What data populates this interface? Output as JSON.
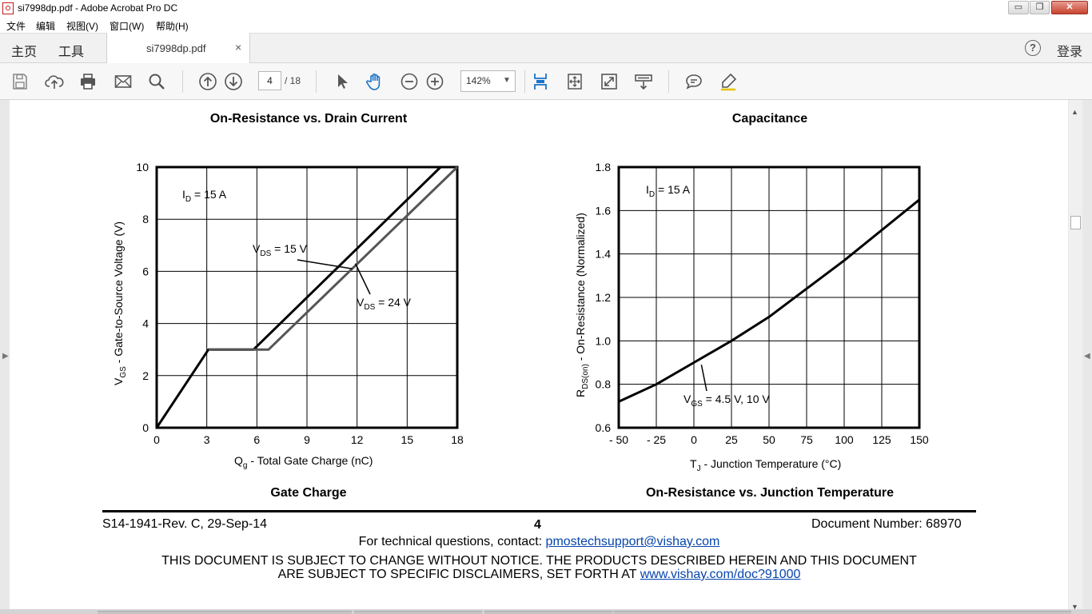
{
  "window": {
    "title": "si7998dp.pdf - Adobe Acrobat Pro DC",
    "minimize": "▭",
    "maximize": "❐",
    "close": "✕"
  },
  "menu": [
    "文件",
    "编辑",
    "视图(V)",
    "窗口(W)",
    "帮助(H)"
  ],
  "nav_tabs": {
    "home": "主页",
    "tools": "工具"
  },
  "doc_tab": {
    "label": "si7998dp.pdf",
    "close": "×"
  },
  "account": {
    "help": "?",
    "login": "登录"
  },
  "toolbar": {
    "icons": [
      "save-icon",
      "upload-icon",
      "print-icon",
      "email-icon",
      "search-icon",
      "page-up-icon",
      "page-down-icon",
      "select-cursor-icon",
      "hand-icon",
      "zoom-out-icon",
      "zoom-in-icon",
      "fit-page-icon",
      "full-screen-icon",
      "fit-width-icon",
      "scroll-mode-icon",
      "comment-icon",
      "highlight-icon"
    ],
    "page_current": "4",
    "page_total": "/ 18",
    "zoom": "142%"
  },
  "charts": {
    "left": {
      "title_above": "On-Resistance vs. Drain Current",
      "caption_below": "Gate Charge",
      "annot_id": "I",
      "annot_id_sub": "D",
      "annot_id_val": " = 15 A",
      "ylabel_main": "V",
      "ylabel_sub": "GS",
      "ylabel_rest": " - Gate-to-Source Voltage (V)",
      "xlabel_main": "Q",
      "xlabel_sub": "g",
      "xlabel_rest": " - Total Gate Charge (nC)",
      "label15_main": "V",
      "label15_sub": "DS",
      "label15_rest": " = 15 V",
      "label24_main": "V",
      "label24_sub": "DS",
      "label24_rest": " = 24 V"
    },
    "right": {
      "title_above": "Capacitance",
      "caption_below": "On-Resistance vs. Junction Temperature",
      "annot_id": "I",
      "annot_id_sub": "D",
      "annot_id_val": " = 15 A",
      "ylabel_main": "R",
      "ylabel_sub": "DS(on)",
      "ylabel_rest": " - On-Resistance (Normalized)",
      "xlabel_main": "T",
      "xlabel_sub": "J",
      "xlabel_rest": " - Junction Temperature (°C)",
      "curve_main": "V",
      "curve_sub": "GS",
      "curve_rest": " = 4.5 V, 10 V"
    }
  },
  "chart_data": [
    {
      "type": "line",
      "title": "Gate Charge",
      "xlabel": "Qg - Total Gate Charge (nC)",
      "ylabel": "VGS - Gate-to-Source Voltage (V)",
      "xlim": [
        0,
        18
      ],
      "ylim": [
        0,
        10
      ],
      "xticks": [
        0,
        3,
        6,
        9,
        12,
        15,
        18
      ],
      "yticks": [
        0,
        2,
        4,
        6,
        8,
        10
      ],
      "grid": true,
      "series": [
        {
          "name": "VDS = 15 V",
          "color": "#000000",
          "x": [
            0,
            3.1,
            5.8,
            17.0
          ],
          "y": [
            0,
            3.0,
            3.0,
            10.0
          ]
        },
        {
          "name": "VDS = 24 V",
          "color": "#555555",
          "x": [
            3.1,
            6.7,
            18.0
          ],
          "y": [
            3.0,
            3.0,
            10.0
          ]
        }
      ]
    },
    {
      "type": "line",
      "title": "On-Resistance vs. Junction Temperature",
      "xlabel": "TJ - Junction Temperature (°C)",
      "ylabel": "RDS(on) - On-Resistance (Normalized)",
      "xlim": [
        -50,
        150
      ],
      "ylim": [
        0.6,
        1.8
      ],
      "xticks": [
        -50,
        -25,
        0,
        25,
        50,
        75,
        100,
        125,
        150
      ],
      "xtick_labels": [
        "- 50",
        "- 25",
        "0",
        "25",
        "50",
        "75",
        "100",
        "125",
        "150"
      ],
      "yticks": [
        0.6,
        0.8,
        1.0,
        1.2,
        1.4,
        1.6,
        1.8
      ],
      "ytick_labels": [
        "0.6",
        "0.8",
        "1.0",
        "1.2",
        "1.4",
        "1.6",
        "1.8"
      ],
      "grid": true,
      "series": [
        {
          "name": "VGS = 4.5 V, 10 V",
          "color": "#000000",
          "x": [
            -50,
            -25,
            0,
            25,
            50,
            75,
            100,
            125,
            150
          ],
          "y": [
            0.72,
            0.8,
            0.9,
            1.0,
            1.11,
            1.24,
            1.37,
            1.51,
            1.65
          ]
        }
      ]
    }
  ],
  "footer": {
    "revision": "S14-1941-Rev. C, 29-Sep-14",
    "page_number": "4",
    "doc_number": "Document Number: 68970",
    "contact_text": "For technical questions, contact: ",
    "contact_link": "pmostechsupport@vishay.com",
    "disclaimer_line1": "THIS DOCUMENT IS SUBJECT TO CHANGE WITHOUT NOTICE. THE PRODUCTS DESCRIBED HEREIN AND THIS DOCUMENT",
    "disclaimer_line2": "ARE SUBJECT TO SPECIFIC DISCLAIMERS, SET FORTH AT ",
    "disclaimer_link": "www.vishay.com/doc?91000"
  }
}
